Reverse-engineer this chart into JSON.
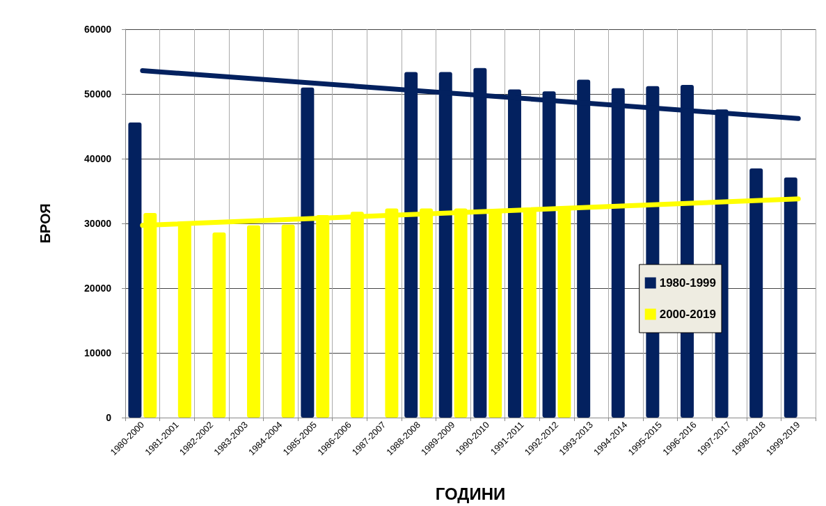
{
  "chart_data": {
    "type": "bar",
    "xlabel": "ГОДИНИ",
    "ylabel": "БРОЯ",
    "categories": [
      "1980-2000",
      "1981-2001",
      "1982-2002",
      "1983-2003",
      "1984-2004",
      "1985-2005",
      "1986-2006",
      "1987-2007",
      "1988-2008",
      "1989-2009",
      "1990-2010",
      "1991-2011",
      "1992-2012",
      "1993-2013",
      "1994-2014",
      "1995-2015",
      "1996-2016",
      "1997-2017",
      "1998-2018",
      "1999-2019"
    ],
    "series": [
      {
        "name": "1980-1999",
        "color": "#03215f",
        "values": [
          45600,
          null,
          null,
          null,
          null,
          51000,
          null,
          null,
          53400,
          53400,
          54000,
          50700,
          50400,
          52200,
          50900,
          51200,
          51400,
          47600,
          38500,
          37100
        ]
      },
      {
        "name": "2000-2019",
        "color": "#ffff00",
        "values": [
          31600,
          30000,
          28600,
          29700,
          29800,
          31300,
          31800,
          32300,
          32300,
          32300,
          32000,
          32300,
          32500,
          null,
          null,
          null,
          null,
          null,
          null,
          null
        ]
      },
      {
        "type": "line",
        "color": "#03215f",
        "x": [
          "1980-2000",
          "1999-2019"
        ],
        "values": [
          53600,
          46200
        ]
      },
      {
        "type": "line",
        "color": "#ffff00",
        "x": [
          "1980-2000",
          "1999-2019"
        ],
        "values": [
          29700,
          33800
        ]
      }
    ],
    "ylim": [
      0,
      60000
    ],
    "yticks": [
      0,
      10000,
      20000,
      30000,
      40000,
      50000,
      60000
    ],
    "grid": true,
    "legend": "right",
    "marker": "none",
    "line_style": "solid"
  }
}
